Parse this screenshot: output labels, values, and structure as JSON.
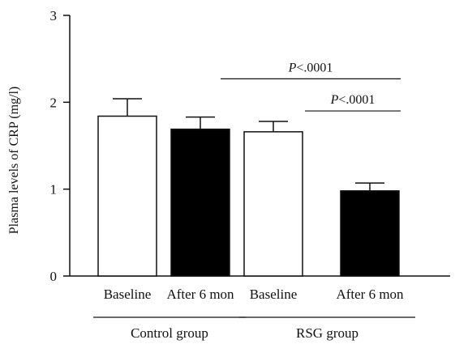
{
  "chart_data": {
    "type": "bar",
    "title": "",
    "xlabel": "",
    "ylabel": "Plasma levels of CRP (mg/l)",
    "ylim": [
      0,
      3
    ],
    "yticks": [
      0,
      1,
      2,
      3
    ],
    "grid": false,
    "legend": "none",
    "categories": [
      "Baseline",
      "After 6 mon",
      "Baseline",
      "After 6 mon"
    ],
    "values": [
      1.84,
      1.69,
      1.66,
      0.98
    ],
    "errors": [
      0.2,
      0.14,
      0.12,
      0.09
    ],
    "fills": [
      "#ffffff",
      "#000000",
      "#ffffff",
      "#000000"
    ],
    "groups": [
      {
        "label": "Control group",
        "from": 0,
        "to": 1
      },
      {
        "label": "RSG group",
        "from": 2,
        "to": 3
      }
    ],
    "annotations": [
      {
        "p": "P",
        "rest": "<.0001",
        "from": 1,
        "to": 3,
        "y": 2.27
      },
      {
        "p": "P",
        "rest": "<.0001",
        "from": 2,
        "to": 3,
        "y": 1.9
      }
    ]
  }
}
